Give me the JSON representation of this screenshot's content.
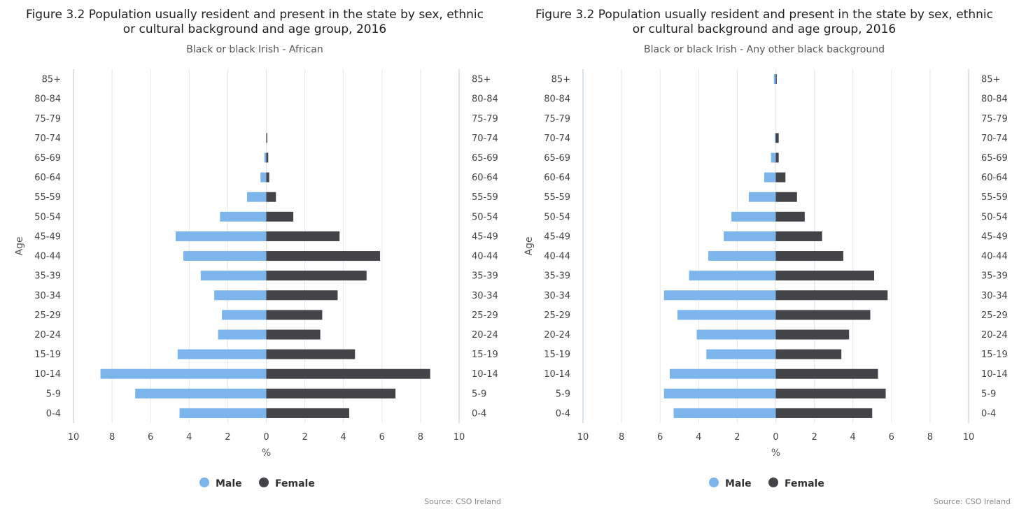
{
  "chart_data": [
    {
      "type": "bar",
      "orientation": "horizontal",
      "title_lines": [
        "Figure 3.2 Population usually resident and present in the state by sex, ethnic",
        "or cultural background and age group, 2016"
      ],
      "subtitle": "Black or black Irish - African",
      "ylabel": "Age",
      "xlabel": "%",
      "xlim": [
        -10,
        10
      ],
      "x_ticks": [
        "10",
        "8",
        "6",
        "4",
        "2",
        "0",
        "2",
        "4",
        "6",
        "8",
        "10"
      ],
      "categories": [
        "85+",
        "80-84",
        "75-79",
        "70-74",
        "65-69",
        "60-64",
        "55-59",
        "50-54",
        "45-49",
        "40-44",
        "35-39",
        "30-34",
        "25-29",
        "20-24",
        "15-19",
        "10-14",
        "5-9",
        "0-4"
      ],
      "series": [
        {
          "name": "Male",
          "color": "#7cb5ec",
          "values": [
            0,
            0,
            0,
            0,
            0.1,
            0.3,
            1.0,
            2.4,
            4.7,
            4.3,
            3.4,
            2.7,
            2.3,
            2.5,
            4.6,
            8.6,
            6.8,
            4.5
          ]
        },
        {
          "name": "Female",
          "color": "#434348",
          "values": [
            0,
            0,
            0,
            0.05,
            0.1,
            0.15,
            0.5,
            1.4,
            3.8,
            5.9,
            5.2,
            3.7,
            2.9,
            2.8,
            4.6,
            8.5,
            6.7,
            4.3
          ]
        }
      ],
      "grid": true,
      "legend": "bottom",
      "credit": "Source: CSO Ireland"
    },
    {
      "type": "bar",
      "orientation": "horizontal",
      "title_lines": [
        "Figure 3.2 Population usually resident and present in the state by sex, ethnic",
        "or cultural background and age group, 2016"
      ],
      "subtitle": "Black or black Irish - Any other black background",
      "ylabel": "Age",
      "xlabel": "%",
      "xlim": [
        -10,
        10
      ],
      "x_ticks": [
        "10",
        "8",
        "6",
        "4",
        "2",
        "0",
        "2",
        "4",
        "6",
        "8",
        "10"
      ],
      "categories": [
        "85+",
        "80-84",
        "75-79",
        "70-74",
        "65-69",
        "60-64",
        "55-59",
        "50-54",
        "45-49",
        "40-44",
        "35-39",
        "30-34",
        "25-29",
        "20-24",
        "15-19",
        "10-14",
        "5-9",
        "0-4"
      ],
      "series": [
        {
          "name": "Male",
          "color": "#7cb5ec",
          "values": [
            0.1,
            0,
            0,
            0.05,
            0.25,
            0.6,
            1.4,
            2.3,
            2.7,
            3.5,
            4.5,
            5.8,
            5.1,
            4.1,
            3.6,
            5.5,
            5.8,
            5.3
          ]
        },
        {
          "name": "Female",
          "color": "#434348",
          "values": [
            0.05,
            0,
            0,
            0.15,
            0.15,
            0.5,
            1.1,
            1.5,
            2.4,
            3.5,
            5.1,
            5.8,
            4.9,
            3.8,
            3.4,
            5.3,
            5.7,
            5.0
          ]
        }
      ],
      "grid": true,
      "legend": "bottom",
      "credit": "Source: CSO Ireland"
    }
  ]
}
